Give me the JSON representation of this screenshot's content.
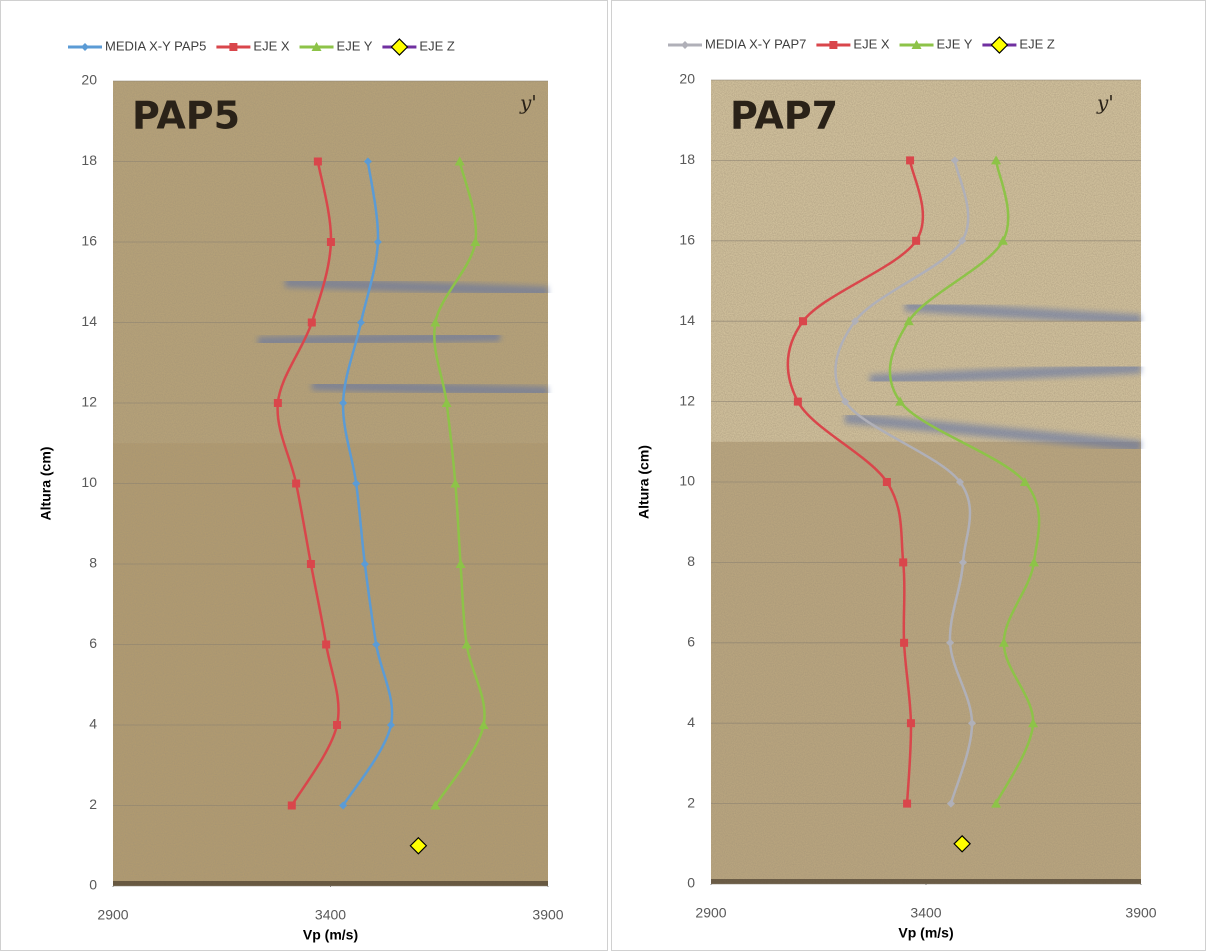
{
  "chart_data": [
    {
      "type": "line",
      "photo_label": "PAP5",
      "photo_mark": "y'",
      "x_label": "Vp (m/s)",
      "y_label": "Altura (cm)",
      "xlim": [
        2900,
        3900
      ],
      "xticks": [
        2900,
        3400,
        3900
      ],
      "ylim": [
        0,
        20
      ],
      "yticks": [
        0,
        2,
        4,
        6,
        8,
        10,
        12,
        14,
        16,
        18,
        20
      ],
      "grid": true,
      "legend": "top",
      "series": [
        {
          "name": "MEDIA X-Y PAP5",
          "color": "#5b9bd5",
          "marker": "diamond",
          "x": [
            3486,
            3509,
            3470,
            3429,
            3459,
            3479,
            3505,
            3539,
            3429
          ],
          "y": [
            18,
            16,
            14,
            12,
            10,
            8,
            6,
            4,
            2
          ]
        },
        {
          "name": "EJE X",
          "color": "#d9464b",
          "marker": "square",
          "x": [
            3371,
            3401,
            3357,
            3279,
            3321,
            3355,
            3390,
            3415,
            3311
          ],
          "y": [
            18,
            16,
            14,
            12,
            10,
            8,
            6,
            4,
            2
          ]
        },
        {
          "name": "EJE Y",
          "color": "#8dc348",
          "marker": "triangle",
          "x": [
            3697,
            3733,
            3641,
            3667,
            3687,
            3699,
            3713,
            3752,
            3641
          ],
          "y": [
            18,
            16,
            14,
            12,
            10,
            8,
            6,
            4,
            2
          ]
        },
        {
          "name": "EJE Z",
          "color": "#7030a0",
          "marker": "big-diamond",
          "x": [
            3602
          ],
          "y": [
            1
          ]
        }
      ]
    },
    {
      "type": "line",
      "photo_label": "PAP7",
      "photo_mark": "y'",
      "x_label": "Vp (m/s)",
      "y_label": "Altura (cm)",
      "xlim": [
        2900,
        3900
      ],
      "xticks": [
        2900,
        3400,
        3900
      ],
      "ylim": [
        0,
        20
      ],
      "yticks": [
        0,
        2,
        4,
        6,
        8,
        10,
        12,
        14,
        16,
        18,
        20
      ],
      "grid": true,
      "legend": "top",
      "series": [
        {
          "name": "MEDIA X-Y PAP7",
          "color": "#b0b0b8",
          "marker": "diamond",
          "x": [
            3467,
            3484,
            3235,
            3212,
            3479,
            3486,
            3456,
            3507,
            3458
          ],
          "y": [
            18,
            16,
            14,
            12,
            10,
            8,
            6,
            4,
            2
          ]
        },
        {
          "name": "EJE X",
          "color": "#d9464b",
          "marker": "square",
          "x": [
            3363,
            3377,
            3114,
            3102,
            3309,
            3347,
            3349,
            3365,
            3356
          ],
          "y": [
            18,
            16,
            14,
            12,
            10,
            8,
            6,
            4,
            2
          ]
        },
        {
          "name": "EJE Y",
          "color": "#8dc348",
          "marker": "triangle",
          "x": [
            3563,
            3579,
            3360,
            3340,
            3630,
            3651,
            3581,
            3649,
            3563
          ],
          "y": [
            18,
            16,
            14,
            12,
            10,
            8,
            6,
            4,
            2
          ]
        },
        {
          "name": "EJE Z",
          "color": "#7030a0",
          "marker": "big-diamond",
          "x": [
            3484
          ],
          "y": [
            1
          ]
        }
      ]
    }
  ]
}
